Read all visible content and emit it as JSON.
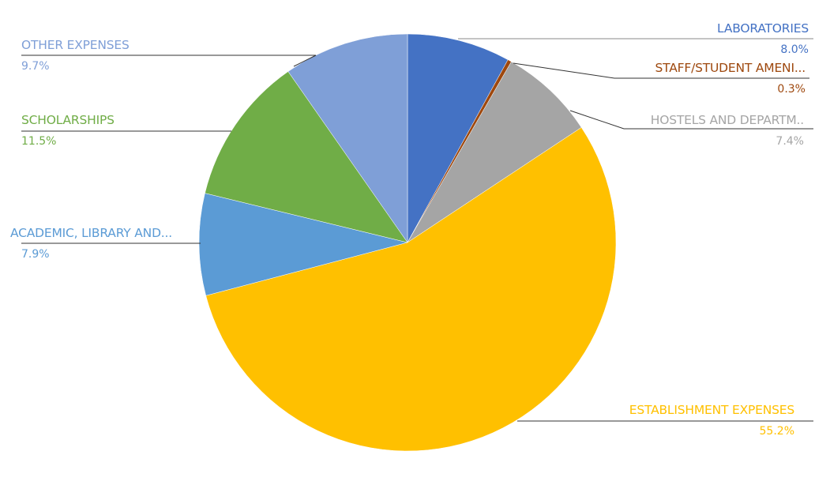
{
  "chart_data": {
    "type": "pie",
    "title": "",
    "start_angle_deg": 0,
    "direction": "clockwise",
    "slices": [
      {
        "label": "LABORATORIES",
        "value": 8.0,
        "pct_label": "8.0%",
        "color": "#4472C4"
      },
      {
        "label": "STAFF/STUDENT AMENI...",
        "value": 0.3,
        "pct_label": "0.3%",
        "color": "#9E480E"
      },
      {
        "label": "HOSTELS AND DEPARTM..",
        "value": 7.4,
        "pct_label": "7.4%",
        "color": "#A5A5A5"
      },
      {
        "label": "ESTABLISHMENT EXPENSES",
        "value": 55.2,
        "pct_label": "55.2%",
        "color": "#FFC000"
      },
      {
        "label": "ACADEMIC, LIBRARY AND...",
        "value": 7.9,
        "pct_label": "7.9%",
        "color": "#5B9BD5"
      },
      {
        "label": "SCHOLARSHIPS",
        "value": 11.5,
        "pct_label": "11.5%",
        "color": "#70AD47"
      },
      {
        "label": "OTHER EXPENSES",
        "value": 9.7,
        "pct_label": "9.7%",
        "color": "#7F9FD7"
      }
    ],
    "legend": "none",
    "data_labels": "outside with leader lines"
  }
}
